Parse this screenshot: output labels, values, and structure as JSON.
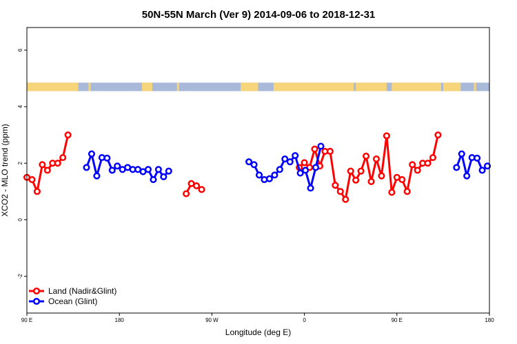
{
  "chart_data": {
    "type": "line",
    "title": "50N-55N March (Ver 9)   2014-09-06 to 2018-12-31",
    "xlabel": "Longitude (deg E)",
    "ylabel": "XCO2 - MLO trend (ppm)",
    "xlim": [
      90,
      540
    ],
    "ylim": [
      -3.3,
      6.8
    ],
    "x_ticks": [
      {
        "value": 90,
        "label": "90 E"
      },
      {
        "value": 180,
        "label": "180"
      },
      {
        "value": 270,
        "label": "90 W"
      },
      {
        "value": 360,
        "label": "0"
      },
      {
        "value": 450,
        "label": "90 E"
      },
      {
        "value": 540,
        "label": "180"
      }
    ],
    "y_ticks": [
      {
        "value": -2,
        "label": "-2"
      },
      {
        "value": 0,
        "label": "0"
      },
      {
        "value": 2,
        "label": "2"
      },
      {
        "value": 4,
        "label": "4"
      },
      {
        "value": 6,
        "label": "6"
      }
    ],
    "land_mask": {
      "y_range": [
        4.55,
        4.85
      ],
      "ocean_color": "#a9b9d9",
      "land_color": "#f7d57a",
      "land_spans": [
        [
          90,
          140
        ],
        [
          150,
          152
        ],
        [
          202,
          212
        ],
        [
          236,
          238
        ],
        [
          298,
          315
        ],
        [
          330,
          408
        ],
        [
          410,
          440
        ],
        [
          445,
          493
        ],
        [
          495,
          512
        ],
        [
          525,
          527
        ]
      ]
    },
    "legend_position": "bottom-left",
    "series": [
      {
        "name": "Land (Nadir&Glint)",
        "color": "#ff0000",
        "points": [
          [
            [
              90,
              1.5
            ],
            [
              95,
              1.42
            ],
            [
              100,
              1.0
            ],
            [
              105,
              1.95
            ],
            [
              110,
              1.75
            ],
            [
              115,
              2.0
            ],
            [
              120,
              2.0
            ],
            [
              125,
              2.2
            ],
            [
              130,
              3.0
            ]
          ],
          [
            [
              245,
              0.92
            ],
            [
              250,
              1.28
            ],
            [
              255,
              1.2
            ],
            [
              260,
              1.07
            ]
          ],
          [
            [
              355,
              1.85
            ],
            [
              360,
              2.02
            ],
            [
              365,
              1.85
            ],
            [
              370,
              2.5
            ],
            [
              375,
              1.9
            ],
            [
              380,
              2.42
            ],
            [
              385,
              2.42
            ],
            [
              390,
              1.22
            ],
            [
              395,
              1.0
            ],
            [
              400,
              0.72
            ],
            [
              405,
              1.72
            ],
            [
              410,
              1.4
            ],
            [
              415,
              1.72
            ],
            [
              420,
              2.25
            ],
            [
              425,
              1.35
            ],
            [
              430,
              2.15
            ],
            [
              435,
              1.55
            ],
            [
              440,
              2.97
            ],
            [
              445,
              0.97
            ],
            [
              450,
              1.5
            ],
            [
              455,
              1.42
            ],
            [
              460,
              1.0
            ],
            [
              465,
              1.95
            ],
            [
              470,
              1.75
            ],
            [
              475,
              2.0
            ],
            [
              480,
              2.0
            ],
            [
              485,
              2.2
            ],
            [
              490,
              3.0
            ]
          ]
        ]
      },
      {
        "name": "Ocean (Glint)",
        "color": "#0000ff",
        "points": [
          [
            [
              148,
              1.85
            ],
            [
              153,
              2.33
            ],
            [
              158,
              1.55
            ],
            [
              163,
              2.2
            ],
            [
              168,
              2.18
            ],
            [
              173,
              1.75
            ],
            [
              178,
              1.9
            ],
            [
              183,
              1.78
            ],
            [
              188,
              1.85
            ],
            [
              193,
              1.78
            ],
            [
              198,
              1.78
            ],
            [
              203,
              1.7
            ],
            [
              208,
              1.78
            ],
            [
              213,
              1.42
            ],
            [
              218,
              1.78
            ],
            [
              223,
              1.52
            ],
            [
              228,
              1.72
            ]
          ],
          [
            [
              306,
              2.05
            ],
            [
              311,
              1.95
            ],
            [
              316,
              1.58
            ],
            [
              321,
              1.42
            ],
            [
              326,
              1.45
            ],
            [
              331,
              1.58
            ],
            [
              336,
              1.78
            ],
            [
              341,
              2.15
            ],
            [
              346,
              2.05
            ],
            [
              351,
              2.27
            ],
            [
              356,
              1.65
            ],
            [
              361,
              1.75
            ],
            [
              366,
              1.12
            ],
            [
              371,
              1.85
            ],
            [
              376,
              2.6
            ]
          ],
          [
            [
              508,
              1.85
            ],
            [
              513,
              2.33
            ],
            [
              518,
              1.55
            ],
            [
              523,
              2.2
            ],
            [
              528,
              2.18
            ],
            [
              533,
              1.75
            ],
            [
              538,
              1.9
            ]
          ]
        ]
      }
    ]
  }
}
